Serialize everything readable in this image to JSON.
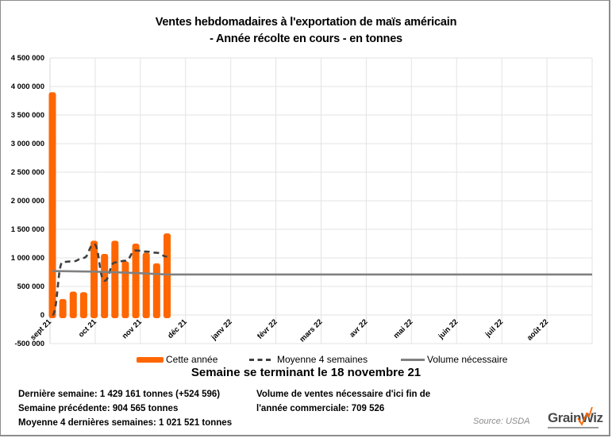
{
  "title": {
    "line1": "Ventes hebdomadaires à l'exportation de maïs américain",
    "line2": "- Année récolte en cours - en tonnes"
  },
  "chart_data": {
    "type": "bar+line",
    "title": "Ventes hebdomadaires à l'exportation de maïs américain - Année récolte en cours - en tonnes",
    "xlabel": "",
    "ylabel": "",
    "ylim": [
      -500000,
      4500000
    ],
    "yticks": [
      4500000,
      4000000,
      3500000,
      3000000,
      2500000,
      2000000,
      1500000,
      1000000,
      500000,
      0,
      -500000
    ],
    "ytick_labels": [
      "4 500 000",
      "4 000 000",
      "3 500 000",
      "3 000 000",
      "2 500 000",
      "2 000 000",
      "1 500 000",
      "1 000 000",
      "500 000",
      "0",
      "-500 000"
    ],
    "x_months": [
      "sept 21",
      "oct 21",
      "nov 21",
      "déc 21",
      "janv 22",
      "févr 22",
      "mars 22",
      "avr 22",
      "mai 22",
      "juin 22",
      "juil 22",
      "août 22"
    ],
    "grid": true,
    "legend_position": "bottom",
    "series": [
      {
        "name": "Cette année",
        "type": "bar",
        "color": "#ff6600",
        "weeks": [
          0,
          1,
          2,
          3,
          4,
          5,
          6,
          7,
          8,
          9,
          10,
          11
        ],
        "values": [
          3900000,
          280000,
          410000,
          400000,
          1300000,
          1070000,
          1300000,
          940000,
          1250000,
          1090000,
          904565,
          1429161
        ]
      },
      {
        "name": "Moyenne 4 semaines",
        "type": "line",
        "style": "dashed",
        "color": "#404040",
        "weeks": [
          0,
          1,
          2,
          3,
          4,
          5,
          6,
          7,
          8,
          9,
          10,
          11
        ],
        "values": [
          0,
          930000,
          940000,
          1000000,
          1240000,
          600000,
          920000,
          950000,
          1130000,
          1110000,
          1090000,
          1021521
        ]
      },
      {
        "name": "Volume nécessaire",
        "type": "line",
        "style": "solid",
        "color": "#808080",
        "weeks": [
          0,
          4,
          8,
          11,
          51
        ],
        "values": [
          770000,
          760000,
          735000,
          709526,
          709526
        ]
      }
    ]
  },
  "legend": {
    "items": [
      "Cette année",
      "Moyenne 4 semaines",
      "Volume nécessaire"
    ]
  },
  "subtitle": "Semaine se terminant  le 18 novembre 21",
  "stats": {
    "last_week": "Dernière semaine: 1 429 161 tonnes (+524 596)",
    "previous_week": "Semaine précédente: 904 565 tonnes",
    "avg_4_weeks": "Moyenne 4 dernières semaines: 1 021 521 tonnes",
    "needed_line1": "Volume de ventes nécessaire d'ici fin de",
    "needed_line2": "l'année commerciale: 709 526"
  },
  "source": "Source:  USDA",
  "logo": {
    "brand": "GrainWiz"
  }
}
